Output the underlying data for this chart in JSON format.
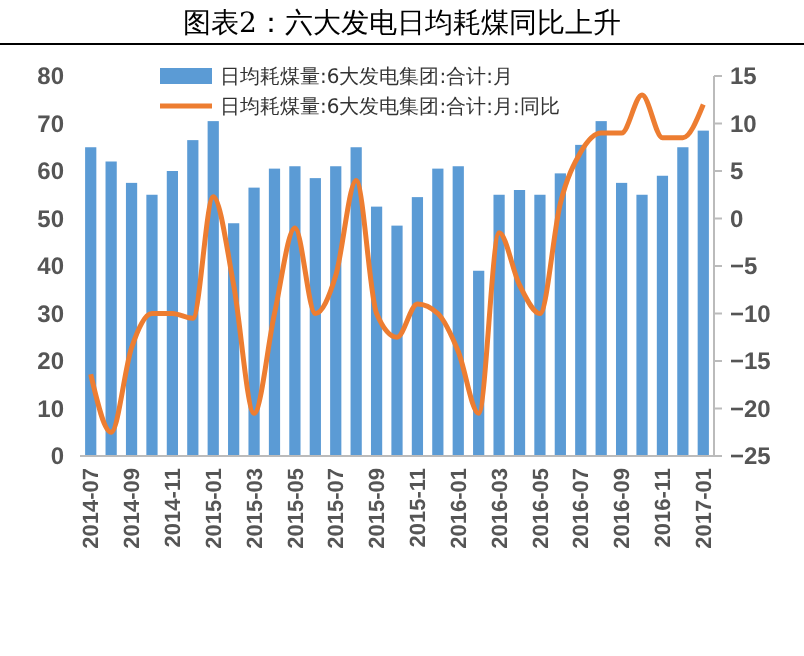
{
  "chart_data": {
    "type": "bar",
    "title": "图表2：六大发电日均耗煤同比上升",
    "categories": [
      "2014-07",
      null,
      "2014-09",
      null,
      "2014-11",
      null,
      "2015-01",
      null,
      "2015-03",
      null,
      "2015-05",
      null,
      "2015-07",
      null,
      "2015-09",
      null,
      "2015-11",
      null,
      "2016-01",
      null,
      "2016-03",
      null,
      "2016-05",
      null,
      "2016-07",
      null,
      "2016-09",
      null,
      "2016-11",
      null,
      "2017-01"
    ],
    "series": [
      {
        "name": "日均耗煤量:6大发电集团:合计:月",
        "color": "#5b9bd5",
        "values": [
          65,
          62,
          57.5,
          55,
          60,
          66.5,
          70.5,
          49,
          56.5,
          60.5,
          61,
          58.5,
          61,
          65,
          52.5,
          48.5,
          54.5,
          60.5,
          61,
          39,
          55,
          56,
          55,
          59.5,
          65.5,
          70.5,
          57.5,
          55,
          59,
          65,
          68.5
        ]
      },
      {
        "name": "日均耗煤量:6大发电集团:合计:月:同比",
        "type": "line",
        "axis": "y2",
        "color": "#ed7d31",
        "values": [
          -16.4,
          -22.5,
          -13.6,
          -10,
          -10,
          -10.5,
          2.3,
          -7,
          -20.5,
          -10,
          -1,
          -10,
          -6,
          4,
          -10,
          -12.5,
          -9,
          -10,
          -14,
          -20.5,
          -1.5,
          -7,
          -10,
          1.6,
          7,
          9,
          9,
          13,
          8.5,
          8.5,
          12
        ]
      }
    ],
    "ylim": [
      0,
      80
    ],
    "yticks": [
      0,
      10,
      20,
      30,
      40,
      50,
      60,
      70,
      80
    ],
    "y2lim": [
      -25,
      15
    ],
    "y2ticks": [
      {
        "value": -25,
        "label": "−25"
      },
      {
        "value": -20,
        "label": "−20"
      },
      {
        "value": -15,
        "label": "−15"
      },
      {
        "value": -10,
        "label": "−10"
      },
      {
        "value": -5,
        "label": "−5"
      },
      0,
      5,
      10,
      15
    ],
    "grid": false,
    "legend": "top",
    "marker": "none",
    "line_style": "solid"
  }
}
